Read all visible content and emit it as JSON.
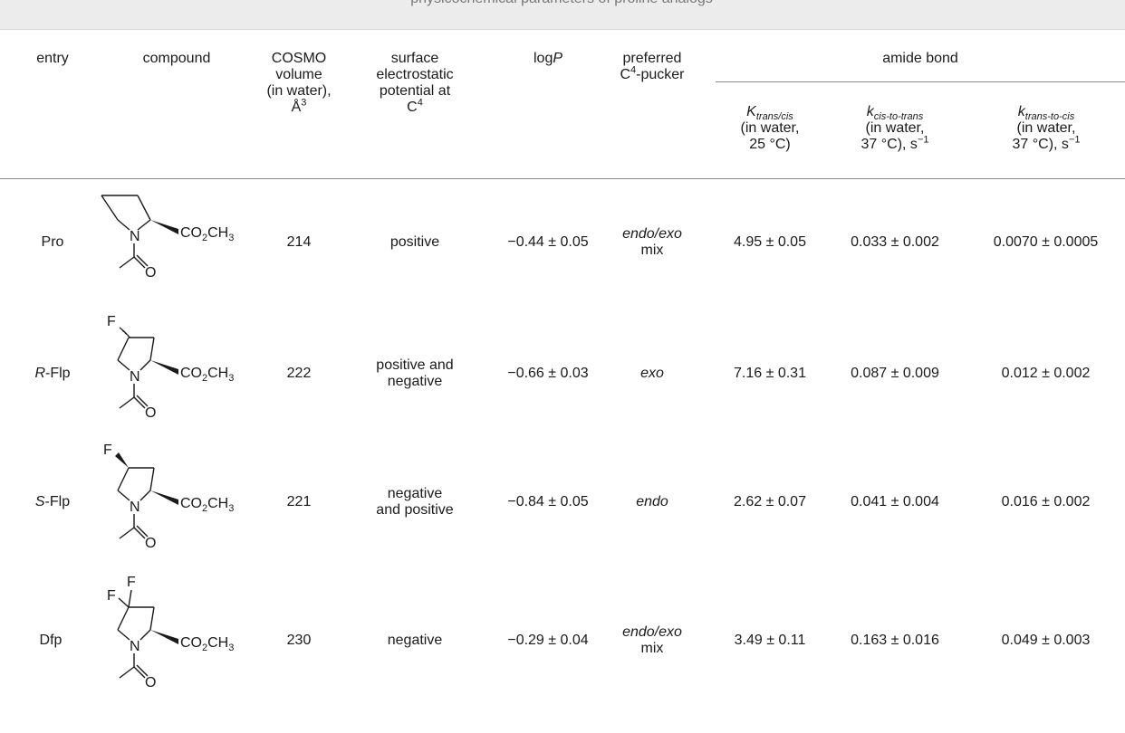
{
  "caption_fragment": "physicochemical parameters of proline analogs",
  "headers": {
    "entry": "entry",
    "compound": "compound",
    "volume": [
      "COSMO",
      "volume",
      "(in water),",
      "Å"
    ],
    "esp": [
      "surface",
      "electrostatic",
      "potential at",
      "C"
    ],
    "logp": "log",
    "logp_italic": "P",
    "pucker": [
      "preferred",
      "C",
      "-pucker"
    ],
    "amide_group": "amide bond",
    "k_ratio": {
      "symbol": "K",
      "subscript": "trans/cis",
      "l2": "(in water,",
      "l3": "25 °C)"
    },
    "k_ct": {
      "symbol": "k",
      "subscript": "cis-to-trans",
      "l2": "(in water,",
      "l3": "37 °C), s"
    },
    "k_tc": {
      "symbol": "k",
      "subscript": "trans-to-cis",
      "l2": "(in water,",
      "l3": "37 °C), s"
    }
  },
  "structure_text": {
    "ester": "CO",
    "ester_2": "2",
    "ester_3": "CH",
    "ester_3s": "3",
    "n": "N",
    "o": "O",
    "f": "F"
  },
  "rows": [
    {
      "entry": "Pro",
      "entry_prefix": "",
      "volume": "214",
      "esp": [
        "positive"
      ],
      "logp": "−0.44 ± 0.05",
      "pucker": [
        "endo/exo",
        "mix"
      ],
      "k_ratio": "4.95 ± 0.05",
      "k_ct": "0.033 ± 0.002",
      "k_tc": "0.0070 ± 0.0005"
    },
    {
      "entry": "-Flp",
      "entry_prefix": "R",
      "volume": "222",
      "esp": [
        "positive and",
        "negative"
      ],
      "logp": "−0.66 ± 0.03",
      "pucker": [
        "exo"
      ],
      "k_ratio": "7.16 ± 0.31",
      "k_ct": "0.087 ± 0.009",
      "k_tc": "0.012 ± 0.002"
    },
    {
      "entry": "-Flp",
      "entry_prefix": "S",
      "volume": "221",
      "esp": [
        "negative",
        "and positive"
      ],
      "logp": "−0.84 ± 0.05",
      "pucker": [
        "endo"
      ],
      "k_ratio": "2.62 ± 0.07",
      "k_ct": "0.041 ± 0.004",
      "k_tc": "0.016 ± 0.002"
    },
    {
      "entry": "Dfp",
      "entry_prefix": "",
      "volume": "230",
      "esp": [
        "negative"
      ],
      "logp": "−0.29 ± 0.04",
      "pucker": [
        "endo/exo",
        "mix"
      ],
      "k_ratio": "3.49 ± 0.11",
      "k_ct": "0.163 ± 0.016",
      "k_tc": "0.049 ± 0.003"
    }
  ]
}
